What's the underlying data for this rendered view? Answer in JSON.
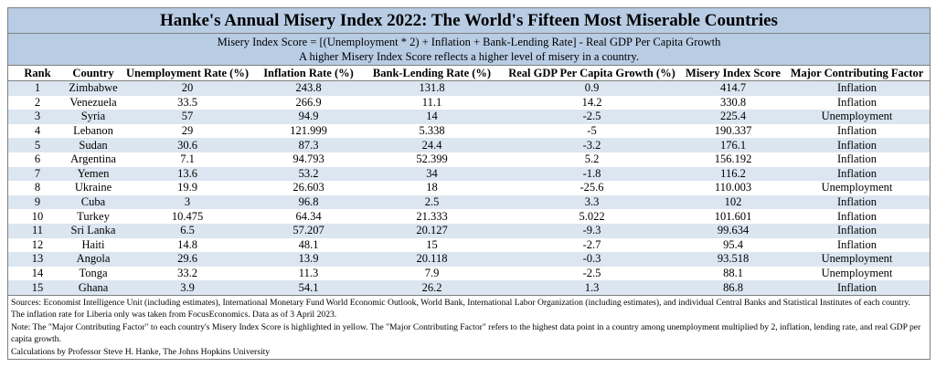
{
  "header": {
    "title": "Hanke's Annual Misery Index 2022: The World's Fifteen Most Miserable Countries",
    "formula": "Misery Index Score = [(Unemployment * 2) + Inflation + Bank-Lending Rate] - Real GDP Per Capita Growth",
    "subtitle": "A higher Misery Index Score reflects a higher level of misery in a country."
  },
  "table": {
    "columns": [
      "Rank",
      "Country",
      "Unemployment Rate (%)",
      "Inflation Rate (%)",
      "Bank-Lending Rate (%)",
      "Real GDP Per Capita Growth (%)",
      "Misery Index Score",
      "Major Contributing Factor"
    ],
    "rows": [
      [
        "1",
        "Zimbabwe",
        "20",
        "243.8",
        "131.8",
        "0.9",
        "414.7",
        "Inflation"
      ],
      [
        "2",
        "Venezuela",
        "33.5",
        "266.9",
        "11.1",
        "14.2",
        "330.8",
        "Inflation"
      ],
      [
        "3",
        "Syria",
        "57",
        "94.9",
        "14",
        "-2.5",
        "225.4",
        "Unemployment"
      ],
      [
        "4",
        "Lebanon",
        "29",
        "121.999",
        "5.338",
        "-5",
        "190.337",
        "Inflation"
      ],
      [
        "5",
        "Sudan",
        "30.6",
        "87.3",
        "24.4",
        "-3.2",
        "176.1",
        "Inflation"
      ],
      [
        "6",
        "Argentina",
        "7.1",
        "94.793",
        "52.399",
        "5.2",
        "156.192",
        "Inflation"
      ],
      [
        "7",
        "Yemen",
        "13.6",
        "53.2",
        "34",
        "-1.8",
        "116.2",
        "Inflation"
      ],
      [
        "8",
        "Ukraine",
        "19.9",
        "26.603",
        "18",
        "-25.6",
        "110.003",
        "Unemployment"
      ],
      [
        "9",
        "Cuba",
        "3",
        "96.8",
        "2.5",
        "3.3",
        "102",
        "Inflation"
      ],
      [
        "10",
        "Turkey",
        "10.475",
        "64.34",
        "21.333",
        "5.022",
        "101.601",
        "Inflation"
      ],
      [
        "11",
        "Sri Lanka",
        "6.5",
        "57.207",
        "20.127",
        "-9.3",
        "99.634",
        "Inflation"
      ],
      [
        "12",
        "Haiti",
        "14.8",
        "48.1",
        "15",
        "-2.7",
        "95.4",
        "Inflation"
      ],
      [
        "13",
        "Angola",
        "29.6",
        "13.9",
        "20.118",
        "-0.3",
        "93.518",
        "Unemployment"
      ],
      [
        "14",
        "Tonga",
        "33.2",
        "11.3",
        "7.9",
        "-2.5",
        "88.1",
        "Unemployment"
      ],
      [
        "15",
        "Ghana",
        "3.9",
        "54.1",
        "26.2",
        "1.3",
        "86.8",
        "Inflation"
      ]
    ]
  },
  "notes": [
    "Sources: Economist Intelligence Unit (including estimates), International Monetary Fund World Economic Outlook, World Bank, International Labor Organization (including estimates), and individual Central Banks and Statistical Institutes of each country.",
    "The inflation rate for Liberia only was taken from FocusEconomics. Data as of 3 April 2023.",
    "Note: The \"Major Contributing Factor\" to each country's Misery Index Score is highlighted in yellow. The \"Major Contributing Factor\" refers to the highest data point in a country among unemployment multiplied by 2, inflation, lending rate, and real GDP per capita growth.",
    "Calculations by Professor Steve H. Hanke, The Johns Hopkins University"
  ]
}
